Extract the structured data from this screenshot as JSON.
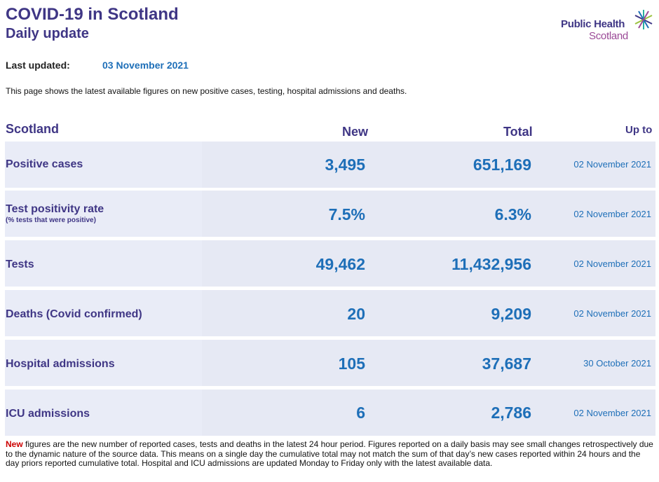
{
  "header": {
    "title": "COVID-19 in Scotland",
    "subtitle": "Daily update",
    "logo_line1": "Public Health",
    "logo_line2": "Scotland"
  },
  "updated": {
    "label": "Last updated:",
    "value": "03 November 2021"
  },
  "intro": "This page shows the latest available figures on new positive cases, testing, hospital admissions and deaths.",
  "table": {
    "headers": {
      "region": "Scotland",
      "new": "New",
      "total": "Total",
      "up_to": "Up to"
    },
    "rows": [
      {
        "label": "Positive cases",
        "sublabel": "",
        "new": "3,495",
        "total": "651,169",
        "date": "02 November 2021"
      },
      {
        "label": "Test positivity rate",
        "sublabel": "(% tests that were positive)",
        "new": "7.5%",
        "total": "6.3%",
        "date": "02 November 2021"
      },
      {
        "label": "Tests",
        "sublabel": "",
        "new": "49,462",
        "total": "11,432,956",
        "date": "02 November 2021"
      },
      {
        "label": "Deaths (Covid confirmed)",
        "sublabel": "",
        "new": "20",
        "total": "9,209",
        "date": "02 November 2021"
      },
      {
        "label": "Hospital admissions",
        "sublabel": "",
        "new": "105",
        "total": "37,687",
        "date": "30 October 2021"
      },
      {
        "label": "ICU admissions",
        "sublabel": "",
        "new": "6",
        "total": "2,786",
        "date": "02 November 2021"
      }
    ]
  },
  "footnote": {
    "highlight": "New",
    "text": " figures are the new number of reported cases, tests and deaths in the latest 24 hour period. Figures reported on a daily basis may see small changes retrospectively due to the dynamic nature of the source data. This means on a single day the cumulative total may not match the sum of that day’s new cases reported within 24 hours and the day priors reported cumulative total. Hospital and ICU admissions are updated Monday to Friday only with the latest available data."
  },
  "colors": {
    "brand_purple": "#3f3685",
    "value_blue": "#1e6fb8",
    "highlight_red": "#cc0000",
    "row_background": "#e6e9f4"
  }
}
